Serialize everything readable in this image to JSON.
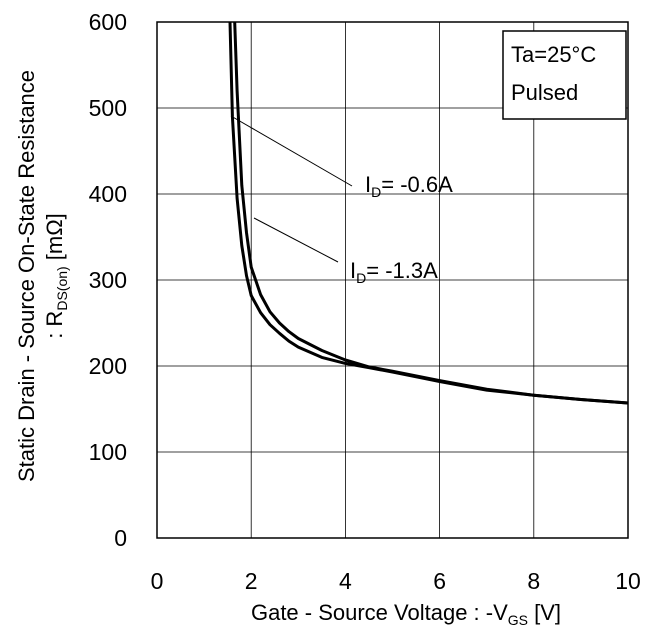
{
  "chart_data": {
    "type": "line",
    "xlim": [
      0,
      10
    ],
    "ylim": [
      0,
      600
    ],
    "x_ticks": [
      0,
      2,
      4,
      6,
      8,
      10
    ],
    "y_ticks": [
      0,
      100,
      200,
      300,
      400,
      500,
      600
    ],
    "grid": true,
    "xlabel": {
      "main": "Gate - Source Voltage : -V",
      "sub": "GS",
      "unit": " [V]"
    },
    "ylabel": {
      "line1": "Static Drain - Source On-State Resistance",
      "line2_main": ": R",
      "line2_sub": "DS(on)",
      "line2_unit": " [mΩ]"
    },
    "conditions": [
      "Ta=25°C",
      "Pulsed"
    ],
    "series": [
      {
        "name": "I_D= -0.6A",
        "label_main": "I",
        "label_sub": "D",
        "label_rest": "= -0.6A",
        "x": [
          1.55,
          1.6,
          1.65,
          1.7,
          1.8,
          1.9,
          2.0,
          2.2,
          2.4,
          2.6,
          2.8,
          3.0,
          3.5,
          4.0,
          4.5,
          5.0,
          6.0,
          7.0,
          8.0,
          9.0,
          10.0
        ],
        "y": [
          600,
          510,
          440,
          390,
          330,
          295,
          272,
          245,
          227,
          213,
          204,
          197,
          188,
          182,
          178,
          175,
          170,
          166,
          162,
          159,
          157
        ]
      },
      {
        "name": "I_D= -1.3A",
        "label_main": "I",
        "label_sub": "D",
        "label_rest": "= -1.3A",
        "x": [
          1.55,
          1.6,
          1.65,
          1.7,
          1.8,
          1.9,
          2.0,
          2.2,
          2.4,
          2.6,
          2.8,
          3.0,
          3.5,
          4.0,
          4.5,
          5.0,
          6.0,
          7.0,
          8.0,
          9.0,
          10.0
        ],
        "y": [
          600,
          510,
          440,
          390,
          330,
          295,
          272,
          245,
          227,
          213,
          204,
          197,
          188,
          182,
          178,
          175,
          170,
          166,
          162,
          159,
          157
        ]
      }
    ],
    "series_actual": [
      {
        "x": [
          1.55,
          1.6,
          1.7,
          1.8,
          1.9,
          2.0,
          2.2,
          2.4,
          2.6,
          2.8,
          3.0,
          3.5,
          4.0,
          4.5,
          5.0,
          6.0,
          7.0,
          8.0,
          9.0,
          10.0
        ],
        "y": [
          600,
          490,
          395,
          340,
          305,
          282,
          262,
          248,
          238,
          229,
          222,
          210,
          203,
          198,
          193,
          182,
          172,
          166,
          161,
          157
        ]
      },
      {
        "x": [
          1.65,
          1.7,
          1.8,
          1.9,
          2.0,
          2.2,
          2.4,
          2.6,
          2.8,
          3.0,
          3.5,
          4.0,
          4.5,
          5.0,
          6.0,
          7.0,
          8.0,
          9.0,
          10.0
        ],
        "y": [
          600,
          520,
          410,
          355,
          315,
          283,
          263,
          250,
          240,
          232,
          218,
          207,
          199,
          194,
          183,
          173,
          166,
          161,
          157
        ]
      }
    ]
  }
}
